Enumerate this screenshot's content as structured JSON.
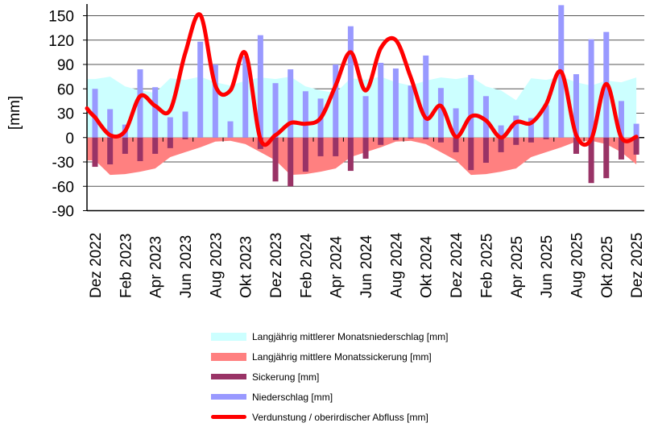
{
  "chart_data": {
    "type": "bar",
    "ylabel": "[mm]",
    "ylim": [
      -90,
      150
    ],
    "yticks": [
      150,
      120,
      90,
      60,
      30,
      0,
      -30,
      -60,
      -90
    ],
    "grid": true,
    "legend_position": "bottom",
    "categories": [
      "Dez 2022",
      "Jan 2023",
      "Feb 2023",
      "Mär 2023",
      "Apr 2023",
      "Mai 2023",
      "Jun 2023",
      "Jul 2023",
      "Aug 2023",
      "Sep 2023",
      "Okt 2023",
      "Nov 2023",
      "Dez 2023",
      "Jan 2024",
      "Feb 2024",
      "Mär 2024",
      "Apr 2024",
      "Mai 2024",
      "Jun 2024",
      "Jul 2024",
      "Aug 2024",
      "Sep 2024",
      "Okt 2024",
      "Nov 2024",
      "Dez 2024",
      "Jan 2025",
      "Feb 2025",
      "Mär 2025",
      "Apr 2025",
      "Mai 2025",
      "Jun 2025",
      "Jul 2025",
      "Aug 2025",
      "Sep 2025",
      "Okt 2025",
      "Nov 2025",
      "Dez 2025"
    ],
    "tick_labels": [
      "Dez 2022",
      "Feb 2023",
      "Apr 2023",
      "Jun 2023",
      "Aug 2023",
      "Okt 2023",
      "Dez 2023",
      "Feb 2024",
      "Apr 2024",
      "Jun 2024",
      "Aug 2024",
      "Okt 2024",
      "Dez 2024",
      "Feb 2025",
      "Apr 2025",
      "Jun 2025",
      "Aug 2025",
      "Okt 2025",
      "Dez 2025"
    ],
    "series": [
      {
        "name": "Langjährig mittlerer Monatsniederschlag [mm]",
        "type": "area",
        "color": "#ccffff",
        "values": [
          72,
          75,
          63,
          58,
          55,
          73,
          71,
          75,
          68,
          64,
          70,
          74,
          72,
          75,
          63,
          58,
          55,
          73,
          71,
          75,
          68,
          64,
          70,
          74,
          72,
          75,
          63,
          58,
          46,
          73,
          71,
          75,
          68,
          64,
          70,
          68,
          74
        ]
      },
      {
        "name": "Langjährig mittlere Monatssickerung [mm]",
        "type": "area",
        "color": "#ff8080",
        "values": [
          -28,
          -46,
          -45,
          -42,
          -38,
          -24,
          -18,
          -12,
          -5,
          -4,
          -8,
          -18,
          -28,
          -46,
          -45,
          -42,
          -38,
          -24,
          -18,
          -12,
          -5,
          -4,
          -8,
          -18,
          -28,
          -46,
          -45,
          -42,
          -38,
          -24,
          -18,
          -12,
          -5,
          -4,
          -8,
          -18,
          -33
        ]
      },
      {
        "name": "Sickerung [mm]",
        "type": "bar",
        "color": "#993366",
        "values": [
          -36,
          -33,
          -20,
          -29,
          -20,
          -13,
          -2,
          0,
          0,
          0,
          0,
          -14,
          -54,
          -60,
          -42,
          -23,
          -23,
          -41,
          -26,
          -9,
          -3,
          -1,
          -2,
          -6,
          -18,
          -40,
          -31,
          -18,
          -9,
          -6,
          -2,
          0,
          -20,
          -56,
          -50,
          -27,
          -21
        ]
      },
      {
        "name": "Niederschlag [mm]",
        "type": "bar",
        "color": "#9999ff",
        "values": [
          60,
          35,
          16,
          84,
          62,
          25,
          32,
          118,
          90,
          20,
          100,
          126,
          67,
          84,
          57,
          48,
          90,
          137,
          51,
          92,
          85,
          64,
          101,
          61,
          36,
          77,
          51,
          15,
          27,
          24,
          40,
          163,
          78,
          121,
          130,
          45,
          17
        ]
      },
      {
        "name": "Verdunstung / oberirdischer Abfluss [mm]",
        "type": "line",
        "color": "#ff0000",
        "values": [
          25,
          3,
          8,
          51,
          39,
          34,
          104,
          151,
          64,
          58,
          104,
          -2,
          3,
          18,
          17,
          24,
          64,
          105,
          58,
          110,
          120,
          74,
          24,
          39,
          1,
          26,
          21,
          0,
          19,
          18,
          41,
          81,
          3,
          -2,
          66,
          0,
          1
        ]
      }
    ]
  }
}
